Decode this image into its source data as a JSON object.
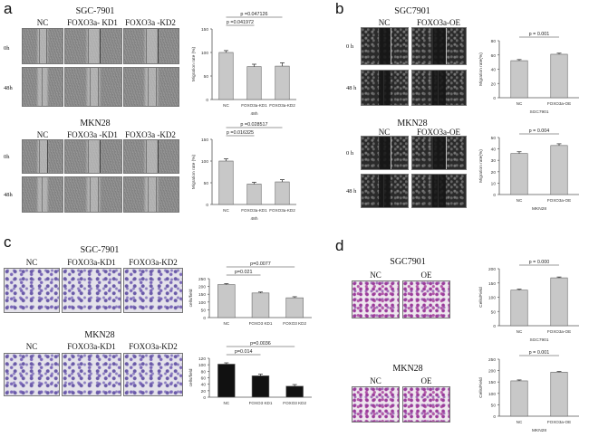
{
  "panels": {
    "a": {
      "letter": "a",
      "groups": [
        {
          "title": "SGC-7901",
          "columns": [
            "NC",
            "FOXO3a- KD1",
            "FOXO3a -KD2"
          ],
          "rows": [
            "0h",
            "48h"
          ]
        },
        {
          "title": "MKN28",
          "columns": [
            "NC",
            "FOXO3a -KD1",
            "FOXO3a -KD2"
          ],
          "rows": [
            "0h",
            "48h"
          ]
        }
      ]
    },
    "b": {
      "letter": "b",
      "groups": [
        {
          "title": "SGC7901",
          "columns": [
            "NC",
            "FOXO3a-OE"
          ],
          "rows": [
            "0 h",
            "48 h"
          ]
        },
        {
          "title": "MKN28",
          "columns": [
            "NC",
            "FOXO3a-OE"
          ],
          "rows": [
            "0 h",
            "48 h"
          ]
        }
      ]
    },
    "c": {
      "letter": "c",
      "groups": [
        {
          "title": "SGC-7901",
          "columns": [
            "NC",
            "FOXO3a-KD1",
            "FOXO3a-KD2"
          ]
        },
        {
          "title": "MKN28",
          "columns": [
            "NC",
            "FOXO3a-KD1",
            "FOXO3a-KD2"
          ]
        }
      ]
    },
    "d": {
      "letter": "d",
      "groups": [
        {
          "title": "SGC7901",
          "columns": [
            "NC",
            "OE"
          ]
        },
        {
          "title": "MKN28",
          "columns": [
            "NC",
            "OE"
          ]
        }
      ]
    }
  },
  "chart_data": [
    {
      "id": "a1",
      "type": "bar",
      "categories": [
        "NC",
        "FOXO3a-KD1",
        "FOXO3a-KD2"
      ],
      "values": [
        100,
        70,
        71
      ],
      "errors": [
        4,
        5,
        7
      ],
      "ylabel": "Migration rate (%)",
      "xlabel": "48h",
      "ylim": [
        0,
        150
      ],
      "yticks": [
        0,
        50,
        100,
        150
      ],
      "bar_color": "#c8c8c8",
      "sig": [
        {
          "text": "p =0.047126",
          "from": 0,
          "to": 2,
          "level": 0
        },
        {
          "text": "p =0.041972",
          "from": 0,
          "to": 1,
          "level": 1
        }
      ]
    },
    {
      "id": "a2",
      "type": "bar",
      "categories": [
        "NC",
        "FOXO3a-KD1",
        "FOXO3a-KD2"
      ],
      "values": [
        100,
        47,
        52
      ],
      "errors": [
        5,
        4,
        5
      ],
      "ylabel": "Migration rate (%)",
      "xlabel": "48h",
      "ylim": [
        0,
        150
      ],
      "yticks": [
        0,
        50,
        100,
        150
      ],
      "bar_color": "#c8c8c8",
      "sig": [
        {
          "text": "p =0.028517",
          "from": 0,
          "to": 2,
          "level": 0
        },
        {
          "text": "p =0.016325",
          "from": 0,
          "to": 1,
          "level": 1
        }
      ]
    },
    {
      "id": "b1",
      "type": "bar",
      "categories": [
        "NC",
        "FOXO3a-OE"
      ],
      "values": [
        52,
        61
      ],
      "errors": [
        1.5,
        1.5
      ],
      "ylabel": "Migration rate(%)",
      "xlabel": "SGC7901",
      "ylim": [
        0,
        80
      ],
      "yticks": [
        0,
        20,
        40,
        60,
        80
      ],
      "bar_color": "#c8c8c8",
      "sig": [
        {
          "text": "p = 0.001",
          "from": 0,
          "to": 1,
          "level": 0
        }
      ]
    },
    {
      "id": "b2",
      "type": "bar",
      "categories": [
        "NC",
        "FOXO3a-OE"
      ],
      "values": [
        36,
        43
      ],
      "errors": [
        1.5,
        1.5
      ],
      "ylabel": "Migration rate(%)",
      "xlabel": "MKN28",
      "ylim": [
        0,
        50
      ],
      "yticks": [
        0,
        10,
        20,
        30,
        40,
        50
      ],
      "bar_color": "#c8c8c8",
      "sig": [
        {
          "text": "p = 0.004",
          "from": 0,
          "to": 1,
          "level": 0
        }
      ]
    },
    {
      "id": "c1",
      "type": "bar",
      "categories": [
        "NC",
        "FOXO3 KD1",
        "FOXO3 KD2"
      ],
      "values": [
        212,
        158,
        127
      ],
      "errors": [
        6,
        6,
        7
      ],
      "ylabel": "cells/field",
      "xlabel": "",
      "ylim": [
        0,
        250
      ],
      "yticks": [
        0,
        50,
        100,
        150,
        200,
        250
      ],
      "bar_color": "#c8c8c8",
      "sig": [
        {
          "text": "p=0.0077",
          "from": 0,
          "to": 2,
          "level": 0
        },
        {
          "text": "p=0.021",
          "from": 0,
          "to": 1,
          "level": 1
        }
      ]
    },
    {
      "id": "c2",
      "type": "bar",
      "categories": [
        "NC",
        "FOXO3 KD1",
        "FOXO3 KD2"
      ],
      "values": [
        102,
        66,
        34
      ],
      "errors": [
        4,
        5,
        5
      ],
      "ylabel": "cells/field",
      "xlabel": "",
      "ylim": [
        0,
        120
      ],
      "yticks": [
        0,
        20,
        40,
        60,
        80,
        100,
        120
      ],
      "bar_color": "#111111",
      "sig": [
        {
          "text": "p=0.0036",
          "from": 0,
          "to": 2,
          "level": 0
        },
        {
          "text": "p=0.014",
          "from": 0,
          "to": 1,
          "level": 1
        }
      ]
    },
    {
      "id": "d1",
      "type": "bar",
      "categories": [
        "NC",
        "FOXO3a-OE"
      ],
      "values": [
        125,
        168
      ],
      "errors": [
        3,
        3
      ],
      "ylabel": "Cells/Field",
      "xlabel": "SGC7901",
      "ylim": [
        0,
        200
      ],
      "yticks": [
        0,
        50,
        100,
        150,
        200
      ],
      "bar_color": "#c8c8c8",
      "sig": [
        {
          "text": "p = 0.000",
          "from": 0,
          "to": 1,
          "level": 0
        }
      ]
    },
    {
      "id": "d2",
      "type": "bar",
      "categories": [
        "NC",
        "FOXO3a-OE"
      ],
      "values": [
        155,
        193
      ],
      "errors": [
        4,
        3
      ],
      "ylabel": "Cells/Field",
      "xlabel": "MKN28",
      "ylim": [
        0,
        250
      ],
      "yticks": [
        0,
        50,
        100,
        150,
        200,
        250
      ],
      "bar_color": "#c8c8c8",
      "sig": [
        {
          "text": "p = 0.001",
          "from": 0,
          "to": 1,
          "level": 0
        }
      ]
    }
  ]
}
